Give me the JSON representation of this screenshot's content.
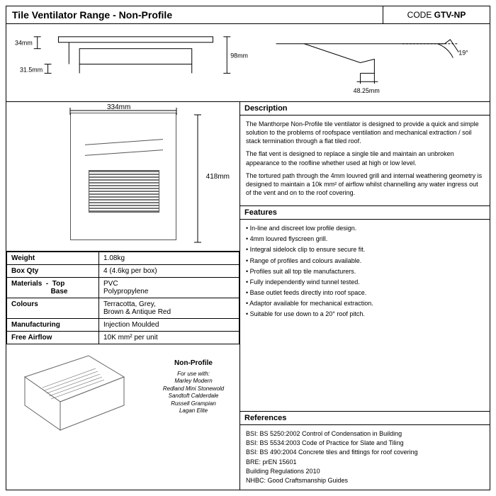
{
  "header": {
    "title": "Tile Ventilator Range - Non-Profile",
    "code_label": "CODE",
    "code_value": "GTV-NP"
  },
  "top_drawing_dims": {
    "a": "34mm",
    "b": "31.5mm",
    "c": "98mm",
    "d": "48.25mm",
    "angle": "19°"
  },
  "tile_dims": {
    "width": "334mm",
    "height": "418mm"
  },
  "specs": [
    {
      "key": "Weight",
      "val": "1.08kg"
    },
    {
      "key": "Box Qty",
      "val": "4 (4.6kg per box)"
    },
    {
      "key": "Materials  -  Top\n                    Base",
      "val": "PVC\nPolypropylene"
    },
    {
      "key": "Colours",
      "val": "Terracotta, Grey,\nBrown & Antique Red"
    },
    {
      "key": "Manufacturing",
      "val": "Injection Moulded"
    },
    {
      "key": "Free Airflow",
      "val": "10K mm² per unit"
    }
  ],
  "iso": {
    "title": "Non-Profile",
    "intro": "For use with:",
    "lines": [
      "Marley Modern",
      "Redland Mini Stonewold",
      "Sandtoft Calderdale",
      "Russell Grampian",
      "Lagan Elite"
    ]
  },
  "sections": {
    "description_head": "Description",
    "description": [
      "The Manthorpe Non-Profile tile ventilator is designed to provide a quick and simple solution to the problems of roofspace ventilation and mechanical extraction / soil stack termination through a flat tiled roof.",
      "The flat vent is designed to replace a single tile and maintain an unbroken appearance to the roofline whether used at high or low level.",
      "The tortured path through the 4mm louvred grill and internal weathering geometry is designed to maintain a 10k mm² of airflow whilst channelling any water ingress out of the vent and on to the roof covering."
    ],
    "features_head": "Features",
    "features": [
      "In-line and discreet low profile design.",
      "4mm louvred flyscreen grill.",
      "Integral sidelock clip to ensure secure fit.",
      "Range of profiles and colours available.",
      "Profiles suit all top tile manufacturers.",
      "Fully independently wind tunnel tested.",
      "Base outlet feeds directly into roof space.",
      "Adaptor available for mechanical extraction.",
      "Suitable for use down to a 20° roof pitch."
    ],
    "references_head": "References",
    "references": [
      "BSI: BS 5250:2002 Control of Condensation in Building",
      "BSI: BS 5534:2003 Code of Practice for Slate and Tiling",
      "BSI: BS 490:2004 Concrete tiles and fittings for roof covering",
      "BRE: prEN 15601",
      "Building Regulations 2010",
      "NHBC: Good Craftsmanship Guides"
    ]
  },
  "colors": {
    "line": "#000000",
    "tile": "#666666",
    "bg": "#ffffff"
  }
}
